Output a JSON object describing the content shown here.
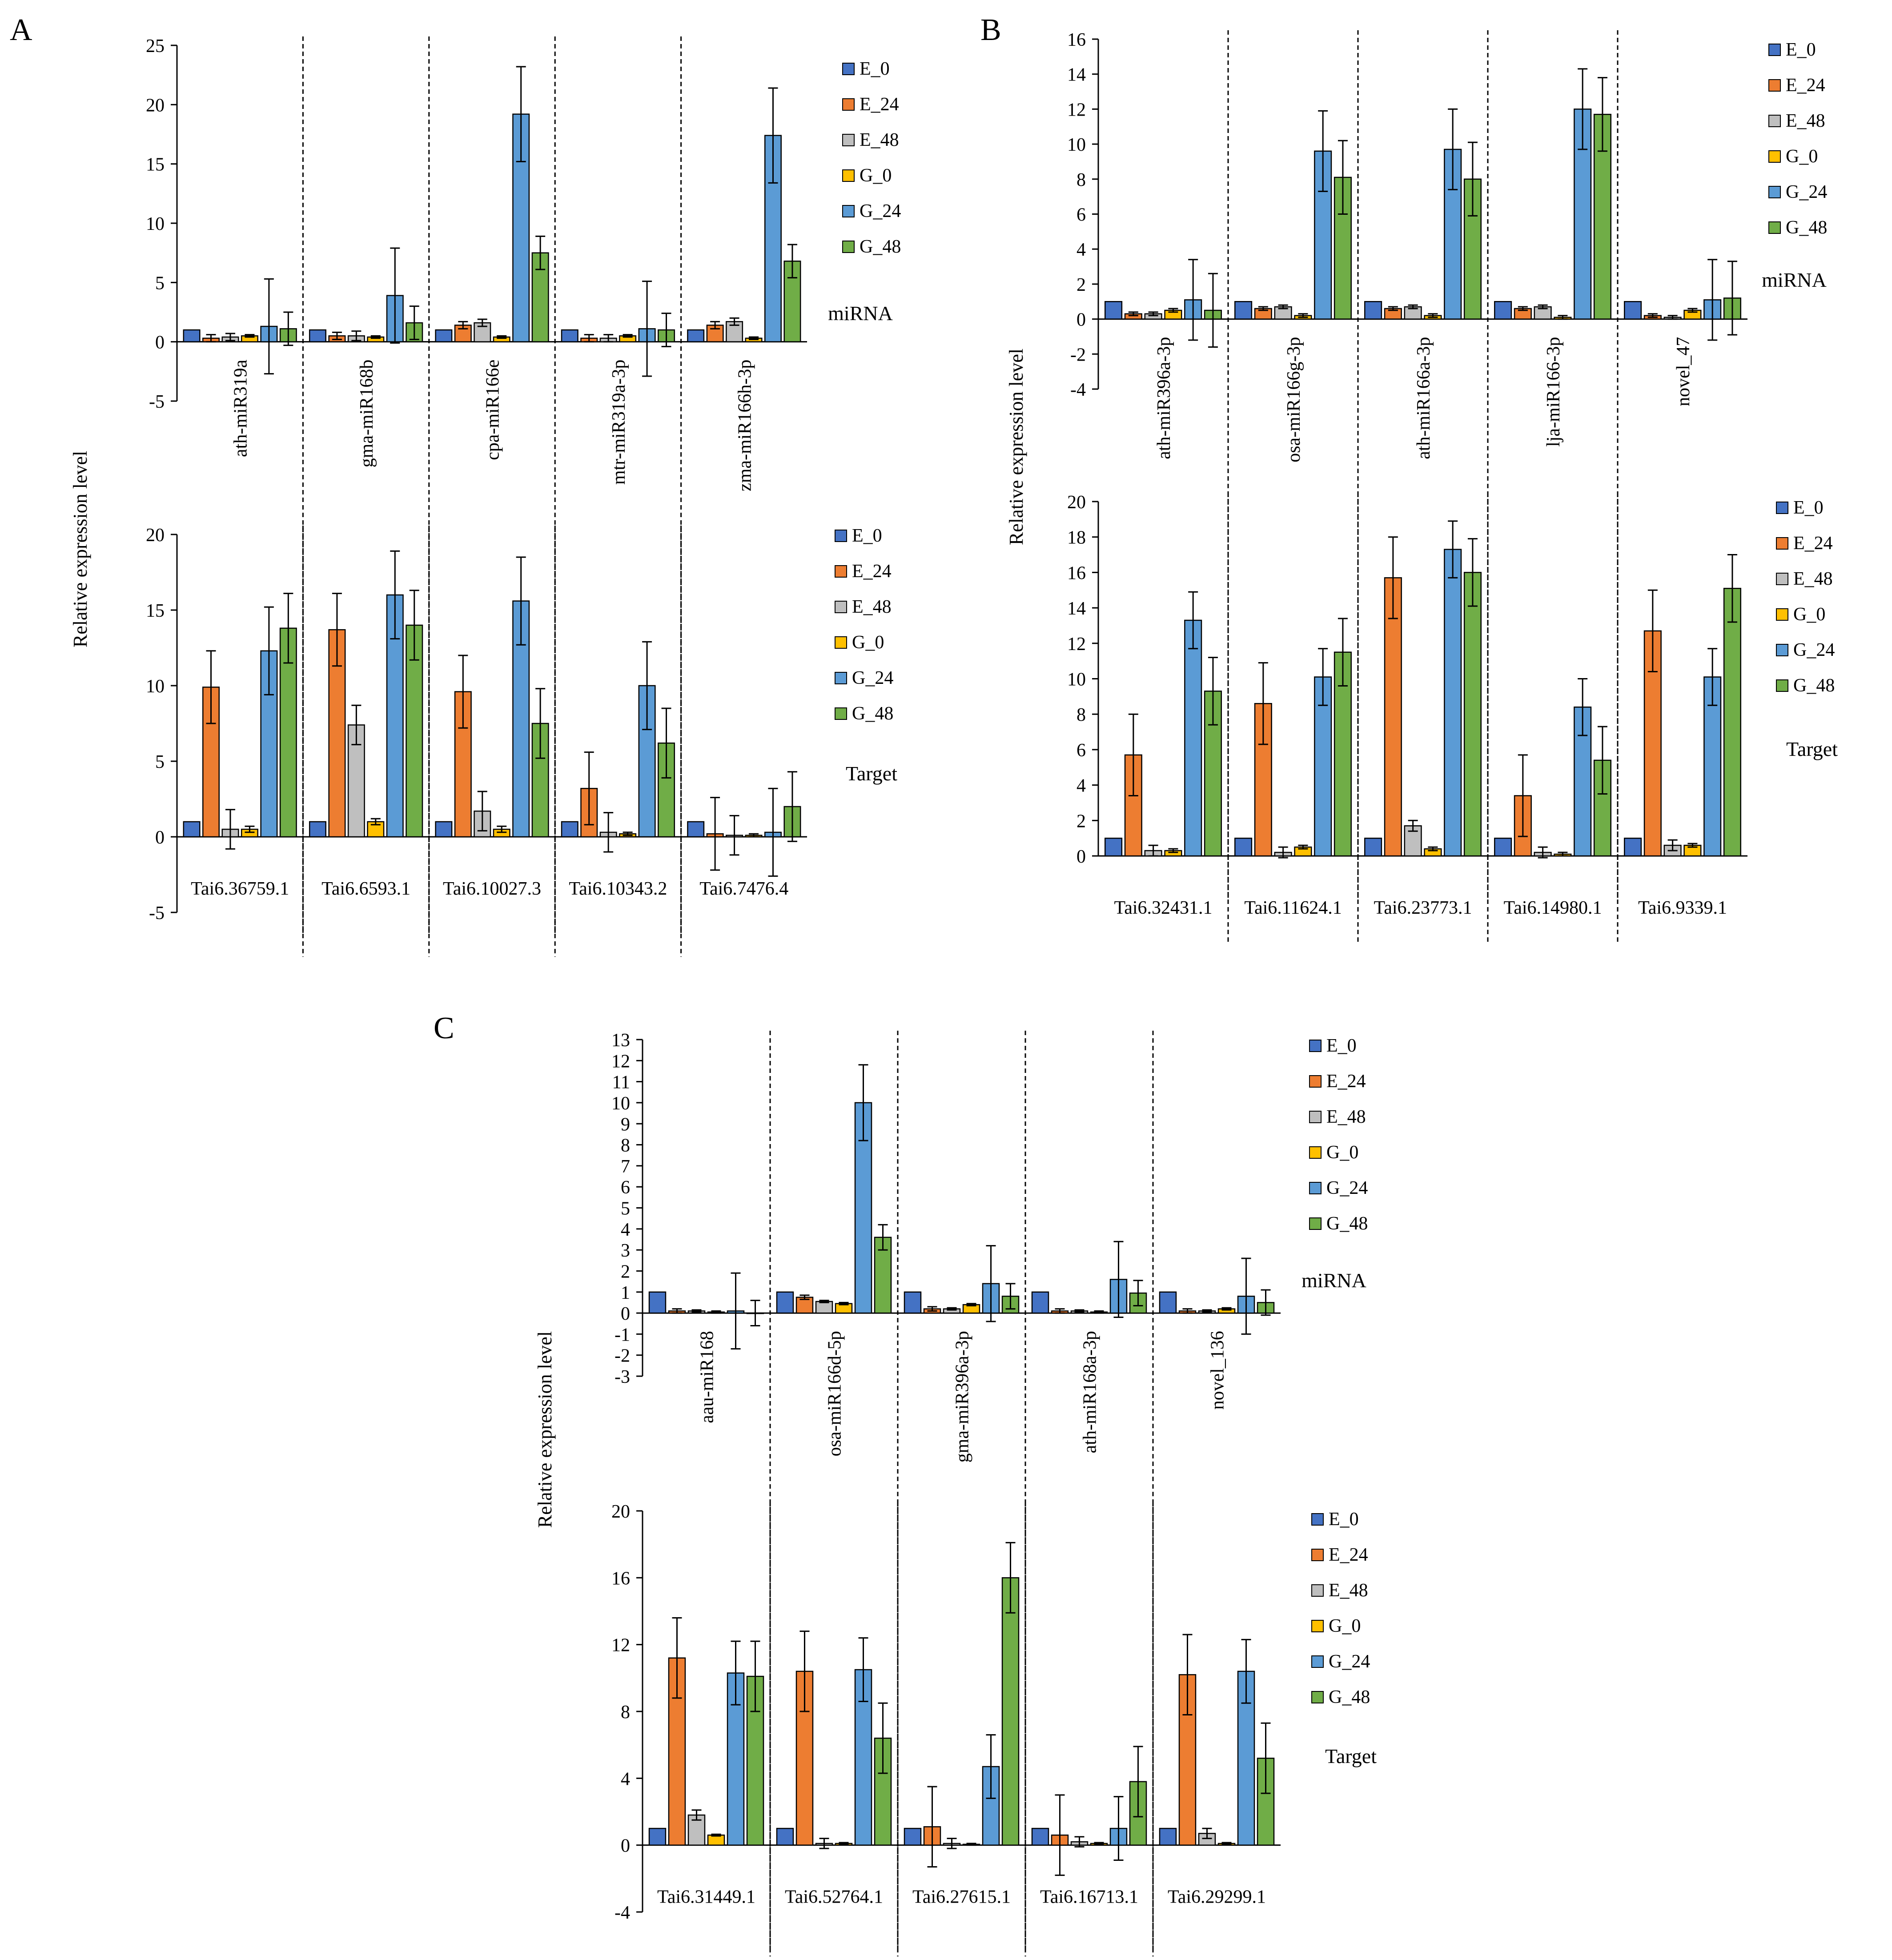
{
  "colors": {
    "E_0": "#4472c4",
    "E_24": "#ed7d31",
    "E_48": "#bfbfbf",
    "G_0": "#ffc000",
    "G_24": "#5b9bd5",
    "G_48": "#70ad47"
  },
  "y_axis_label": "Relative expression level",
  "chart_data": [
    {
      "panel": "A",
      "part": "miRNA",
      "type": "bar",
      "title": "miRNA",
      "ylabel": "Relative expression level",
      "ylim": [
        -5,
        25
      ],
      "yticks": [
        -5,
        0,
        5,
        10,
        15,
        20,
        25
      ],
      "categories": [
        "ath-miR319a",
        "gma-miR168b",
        "cpa-miR166e",
        "mtr-miR319a-3p",
        "zma-miR166h-3p"
      ],
      "series": [
        {
          "name": "E_0",
          "values": [
            1,
            1,
            1,
            1,
            1
          ],
          "errors": [
            0,
            0,
            0,
            0,
            0
          ]
        },
        {
          "name": "E_24",
          "values": [
            0.3,
            0.5,
            1.4,
            0.3,
            1.4
          ],
          "errors": [
            0.3,
            0.3,
            0.3,
            0.3,
            0.3
          ]
        },
        {
          "name": "E_48",
          "values": [
            0.4,
            0.5,
            1.6,
            0.3,
            1.7
          ],
          "errors": [
            0.3,
            0.4,
            0.3,
            0.3,
            0.3
          ]
        },
        {
          "name": "G_0",
          "values": [
            0.5,
            0.4,
            0.4,
            0.5,
            0.3
          ],
          "errors": [
            0.1,
            0.1,
            0.1,
            0.1,
            0.1
          ]
        },
        {
          "name": "G_24",
          "values": [
            1.3,
            3.9,
            19.2,
            1.1,
            17.4
          ],
          "errors": [
            4.0,
            4.0,
            4.0,
            4.0,
            4.0
          ]
        },
        {
          "name": "G_48",
          "values": [
            1.1,
            1.6,
            7.5,
            1.0,
            6.8
          ],
          "errors": [
            1.4,
            1.4,
            1.4,
            1.4,
            1.4
          ]
        }
      ]
    },
    {
      "panel": "A",
      "part": "Target",
      "type": "bar",
      "title": "Target",
      "ylabel": "Relative expression level",
      "ylim": [
        -5,
        20
      ],
      "yticks": [
        -5,
        0,
        5,
        10,
        15,
        20
      ],
      "categories": [
        "Tai6.36759.1",
        "Tai6.6593.1",
        "Tai6.10027.3",
        "Tai6.10343.2",
        "Tai6.7476.4"
      ],
      "series": [
        {
          "name": "E_0",
          "values": [
            1,
            1,
            1,
            1,
            1
          ],
          "errors": [
            0,
            0,
            0,
            0,
            0
          ]
        },
        {
          "name": "E_24",
          "values": [
            9.9,
            13.7,
            9.6,
            3.2,
            0.2
          ],
          "errors": [
            2.4,
            2.4,
            2.4,
            2.4,
            2.4
          ]
        },
        {
          "name": "E_48",
          "values": [
            0.5,
            7.4,
            1.7,
            0.3,
            0.1
          ],
          "errors": [
            1.3,
            1.3,
            1.3,
            1.3,
            1.3
          ]
        },
        {
          "name": "G_0",
          "values": [
            0.5,
            1.0,
            0.5,
            0.2,
            0.1
          ],
          "errors": [
            0.2,
            0.2,
            0.2,
            0.1,
            0.1
          ]
        },
        {
          "name": "G_24",
          "values": [
            12.3,
            16.0,
            15.6,
            10.0,
            0.3
          ],
          "errors": [
            2.9,
            2.9,
            2.9,
            2.9,
            2.9
          ]
        },
        {
          "name": "G_48",
          "values": [
            13.8,
            14.0,
            7.5,
            6.2,
            2.0
          ],
          "errors": [
            2.3,
            2.3,
            2.3,
            2.3,
            2.3
          ]
        }
      ]
    },
    {
      "panel": "B",
      "part": "miRNA",
      "type": "bar",
      "title": "miRNA",
      "ylabel": "Relative expression level",
      "ylim": [
        -4,
        16
      ],
      "yticks": [
        -4,
        -2,
        0,
        2,
        4,
        6,
        8,
        10,
        12,
        14,
        16
      ],
      "categories": [
        "ath-miR396a-3p",
        "osa-miR166g-3p",
        "ath-miR166a-3p",
        "lja-miR166-3p",
        "novel_47"
      ],
      "series": [
        {
          "name": "E_0",
          "values": [
            1,
            1,
            1,
            1,
            1
          ],
          "errors": [
            0,
            0,
            0,
            0,
            0
          ]
        },
        {
          "name": "E_24",
          "values": [
            0.3,
            0.6,
            0.6,
            0.6,
            0.2
          ],
          "errors": [
            0.1,
            0.1,
            0.1,
            0.1,
            0.1
          ]
        },
        {
          "name": "E_48",
          "values": [
            0.3,
            0.7,
            0.7,
            0.7,
            0.1
          ],
          "errors": [
            0.1,
            0.1,
            0.1,
            0.1,
            0.1
          ]
        },
        {
          "name": "G_0",
          "values": [
            0.5,
            0.2,
            0.2,
            0.1,
            0.5
          ],
          "errors": [
            0.1,
            0.1,
            0.1,
            0.1,
            0.1
          ]
        },
        {
          "name": "G_24",
          "values": [
            1.1,
            9.6,
            9.7,
            12.0,
            1.1
          ],
          "errors": [
            2.3,
            2.3,
            2.3,
            2.3,
            2.3
          ]
        },
        {
          "name": "G_48",
          "values": [
            0.5,
            8.1,
            8.0,
            11.7,
            1.2
          ],
          "errors": [
            2.1,
            2.1,
            2.1,
            2.1,
            2.1
          ]
        }
      ]
    },
    {
      "panel": "B",
      "part": "Target",
      "type": "bar",
      "title": "Target",
      "ylabel": "Relative expression level",
      "ylim": [
        0,
        20
      ],
      "yticks": [
        0,
        2,
        4,
        6,
        8,
        10,
        12,
        14,
        16,
        18,
        20
      ],
      "categories": [
        "Tai6.32431.1",
        "Tai6.11624.1",
        "Tai6.23773.1",
        "Tai6.14980.1",
        "Tai6.9339.1"
      ],
      "series": [
        {
          "name": "E_0",
          "values": [
            1,
            1,
            1,
            1,
            1
          ],
          "errors": [
            0,
            0,
            0,
            0,
            0
          ]
        },
        {
          "name": "E_24",
          "values": [
            5.7,
            8.6,
            15.7,
            3.4,
            12.7
          ],
          "errors": [
            2.3,
            2.3,
            2.3,
            2.3,
            2.3
          ]
        },
        {
          "name": "E_48",
          "values": [
            0.3,
            0.2,
            1.7,
            0.2,
            0.6
          ],
          "errors": [
            0.3,
            0.3,
            0.3,
            0.3,
            0.3
          ]
        },
        {
          "name": "G_0",
          "values": [
            0.3,
            0.5,
            0.4,
            0.1,
            0.6
          ],
          "errors": [
            0.1,
            0.1,
            0.1,
            0.1,
            0.1
          ]
        },
        {
          "name": "G_24",
          "values": [
            13.3,
            10.1,
            17.3,
            8.4,
            10.1
          ],
          "errors": [
            1.6,
            1.6,
            1.6,
            1.6,
            1.6
          ]
        },
        {
          "name": "G_48",
          "values": [
            9.3,
            11.5,
            16.0,
            5.4,
            15.1
          ],
          "errors": [
            1.9,
            1.9,
            1.9,
            1.9,
            1.9
          ]
        }
      ]
    },
    {
      "panel": "C",
      "part": "miRNA",
      "type": "bar",
      "title": "miRNA",
      "ylabel": "Relative expression level",
      "ylim": [
        -3,
        13
      ],
      "yticks": [
        -3,
        -2,
        -1,
        0,
        1,
        2,
        3,
        4,
        5,
        6,
        7,
        8,
        9,
        10,
        11,
        12,
        13
      ],
      "categories": [
        "aau-miR168",
        "osa-miR166d-5p",
        "gma-miR396a-3p",
        "ath-miR168a-3p",
        "novel_136"
      ],
      "series": [
        {
          "name": "E_0",
          "values": [
            1,
            1,
            1,
            1,
            1
          ],
          "errors": [
            0,
            0,
            0,
            0,
            0
          ]
        },
        {
          "name": "E_24",
          "values": [
            0.1,
            0.75,
            0.2,
            0.1,
            0.1
          ],
          "errors": [
            0.1,
            0.1,
            0.1,
            0.1,
            0.1
          ]
        },
        {
          "name": "E_48",
          "values": [
            0.1,
            0.55,
            0.2,
            0.1,
            0.1
          ],
          "errors": [
            0.05,
            0.05,
            0.05,
            0.05,
            0.05
          ]
        },
        {
          "name": "G_0",
          "values": [
            0.05,
            0.45,
            0.4,
            0.05,
            0.2
          ],
          "errors": [
            0.05,
            0.05,
            0.05,
            0.05,
            0.05
          ]
        },
        {
          "name": "G_24",
          "values": [
            0.1,
            10.0,
            1.4,
            1.6,
            0.8
          ],
          "errors": [
            1.8,
            1.8,
            1.8,
            1.8,
            1.8
          ]
        },
        {
          "name": "G_48",
          "values": [
            0,
            3.6,
            0.8,
            0.95,
            0.5
          ],
          "errors": [
            0.6,
            0.6,
            0.6,
            0.6,
            0.6
          ]
        }
      ]
    },
    {
      "panel": "C",
      "part": "Target",
      "type": "bar",
      "title": "Target",
      "ylabel": "Relative expression level",
      "ylim": [
        -4,
        20
      ],
      "yticks": [
        -4,
        0,
        4,
        8,
        12,
        16,
        20
      ],
      "categories": [
        "Tai6.31449.1",
        "Tai6.52764.1",
        "Tai6.27615.1",
        "Tai6.16713.1",
        "Tai6.29299.1"
      ],
      "series": [
        {
          "name": "E_0",
          "values": [
            1,
            1,
            1,
            1,
            1
          ],
          "errors": [
            0,
            0,
            0,
            0,
            0
          ]
        },
        {
          "name": "E_24",
          "values": [
            11.2,
            10.4,
            1.1,
            0.6,
            10.2
          ],
          "errors": [
            2.4,
            2.4,
            2.4,
            2.4,
            2.4
          ]
        },
        {
          "name": "E_48",
          "values": [
            1.8,
            0.1,
            0.1,
            0.2,
            0.7
          ],
          "errors": [
            0.3,
            0.3,
            0.3,
            0.3,
            0.3
          ]
        },
        {
          "name": "G_0",
          "values": [
            0.6,
            0.1,
            0.05,
            0.1,
            0.1
          ],
          "errors": [
            0.05,
            0.05,
            0.05,
            0.05,
            0.05
          ]
        },
        {
          "name": "G_24",
          "values": [
            10.3,
            10.5,
            4.7,
            1.0,
            10.4
          ],
          "errors": [
            1.9,
            1.9,
            1.9,
            1.9,
            1.9
          ]
        },
        {
          "name": "G_48",
          "values": [
            10.1,
            6.4,
            16.0,
            3.8,
            5.2
          ],
          "errors": [
            2.1,
            2.1,
            2.1,
            2.1,
            2.1
          ]
        }
      ]
    }
  ],
  "panels": [
    {
      "letter": "A"
    },
    {
      "letter": "B"
    },
    {
      "letter": "C"
    }
  ]
}
